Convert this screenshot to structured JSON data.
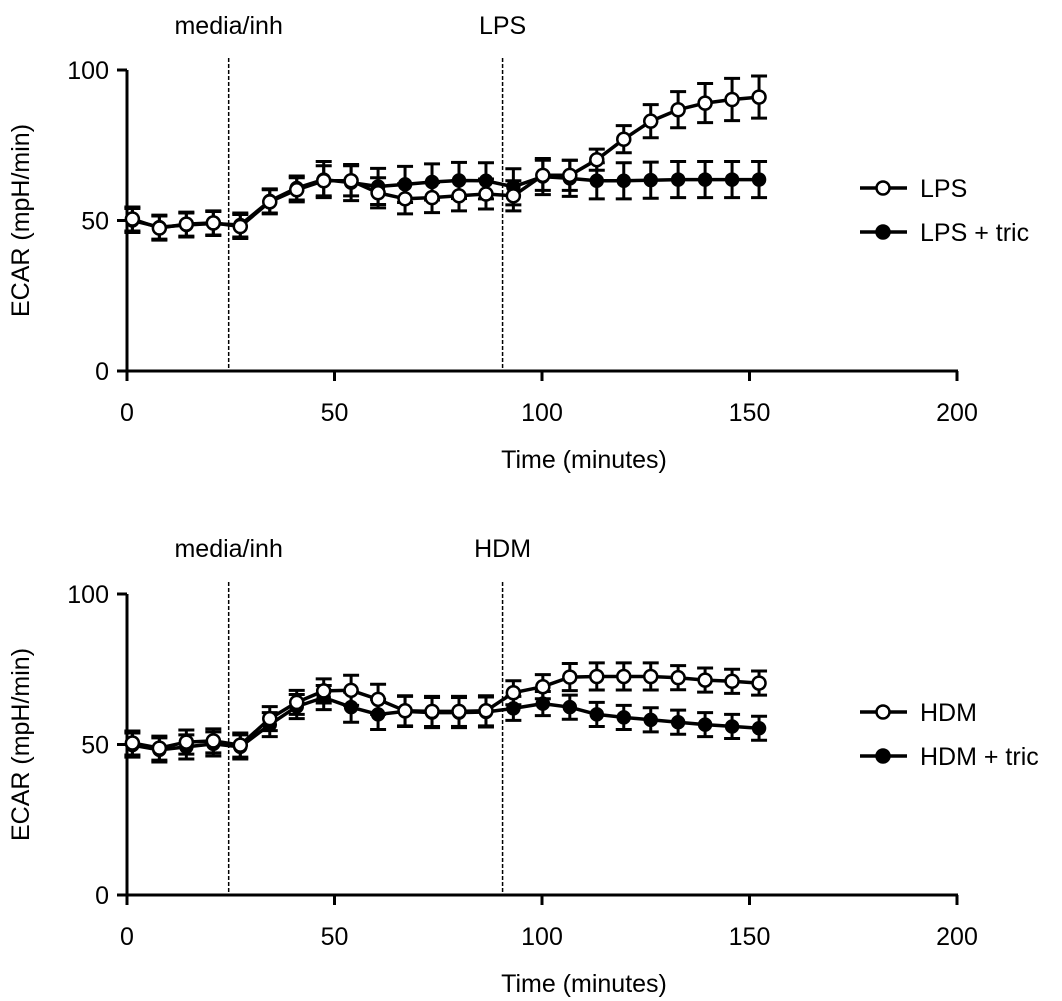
{
  "chart_data": [
    {
      "type": "line",
      "xlabel": "Time (minutes)",
      "ylabel": "ECAR (mpH/min)",
      "xlim": [
        0,
        200
      ],
      "ylim": [
        0,
        100
      ],
      "xticks": [
        "0",
        "50",
        "100",
        "150",
        "200"
      ],
      "yticks": [
        "0",
        "50",
        "100"
      ],
      "grid": false,
      "legend_position": "right",
      "events": [
        {
          "label": "media/inh",
          "x": 24.5
        },
        {
          "label": "LPS",
          "x": 90.5
        }
      ],
      "x": [
        1.3,
        7.8,
        14.3,
        20.8,
        27.3,
        34.4,
        40.9,
        47.4,
        54,
        60.5,
        67,
        73.5,
        80,
        86.5,
        93.1,
        100.2,
        106.7,
        113.2,
        119.7,
        126.2,
        132.8,
        139.3,
        145.8,
        152.3
      ],
      "series": [
        {
          "name": "LPS",
          "marker": "open-circle",
          "values": [
            50.5,
            47.5,
            48.8,
            49.2,
            48,
            56.2,
            60.2,
            63.2,
            63.2,
            59.2,
            57.2,
            57.6,
            58.2,
            58.8,
            58.2,
            65,
            65,
            70.2,
            77,
            83,
            86.8,
            89,
            90.2,
            91
          ],
          "errors": [
            4,
            4,
            4,
            4,
            4,
            4,
            4,
            5,
            5,
            5,
            5,
            5,
            5,
            5,
            5,
            5,
            5,
            3.5,
            4.5,
            5.5,
            6,
            6.5,
            7,
            7
          ]
        },
        {
          "name": "LPS + tric",
          "marker": "filled-circle",
          "values": [
            50,
            47.8,
            48.5,
            49,
            48.5,
            56.5,
            60.8,
            63.6,
            62.6,
            61.3,
            62,
            62.8,
            63.3,
            63.2,
            61.2,
            64.6,
            64,
            63.2,
            63.2,
            63.4,
            63.6,
            63.6,
            63.6,
            63.6
          ],
          "errors": [
            4,
            4,
            4,
            4,
            4,
            4,
            4,
            6,
            6,
            6,
            6,
            6,
            6,
            6,
            6,
            6,
            6,
            6,
            6,
            6,
            6,
            6,
            6,
            6
          ]
        }
      ]
    },
    {
      "type": "line",
      "xlabel": "Time (minutes)",
      "ylabel": "ECAR (mpH/min)",
      "xlim": [
        0,
        200
      ],
      "ylim": [
        0,
        100
      ],
      "xticks": [
        "0",
        "50",
        "100",
        "150",
        "200"
      ],
      "yticks": [
        "0",
        "50",
        "100"
      ],
      "grid": false,
      "legend_position": "right",
      "events": [
        {
          "label": "media/inh",
          "x": 24.5
        },
        {
          "label": "HDM",
          "x": 90.5
        }
      ],
      "x": [
        1.3,
        7.8,
        14.3,
        20.8,
        27.3,
        34.4,
        40.9,
        47.4,
        54,
        60.5,
        67,
        73.5,
        80,
        86.5,
        93.1,
        100.2,
        106.7,
        113.2,
        119.7,
        126.2,
        132.8,
        139.3,
        145.8,
        152.3
      ],
      "series": [
        {
          "name": "HDM",
          "marker": "open-circle",
          "values": [
            50.5,
            48.8,
            50.8,
            51.2,
            49.8,
            58.6,
            64,
            67.8,
            68,
            65,
            61.2,
            61,
            61,
            61.2,
            67.2,
            69.2,
            72.4,
            72.6,
            72.6,
            72.6,
            72.2,
            71.4,
            71,
            70.4
          ],
          "errors": [
            4,
            4,
            4,
            4,
            4,
            4,
            4,
            4,
            5,
            5,
            5,
            5,
            5,
            5,
            4,
            4,
            4.5,
            4.5,
            4.5,
            4.5,
            4,
            4,
            4,
            4
          ]
        },
        {
          "name": "HDM + tric",
          "marker": "filled-circle",
          "values": [
            49.8,
            48.2,
            49.2,
            50.2,
            49.2,
            56.6,
            62.6,
            65.6,
            62.4,
            60,
            61,
            60.6,
            60.6,
            60.8,
            62,
            63.6,
            62.4,
            60,
            59,
            58.2,
            57.4,
            56.6,
            56,
            55.4
          ],
          "errors": [
            4,
            4,
            4,
            4,
            4,
            4,
            4,
            4,
            5,
            5,
            5,
            5,
            5,
            5,
            4,
            4,
            4,
            4,
            4,
            4,
            4,
            4,
            4,
            4
          ]
        }
      ]
    }
  ]
}
